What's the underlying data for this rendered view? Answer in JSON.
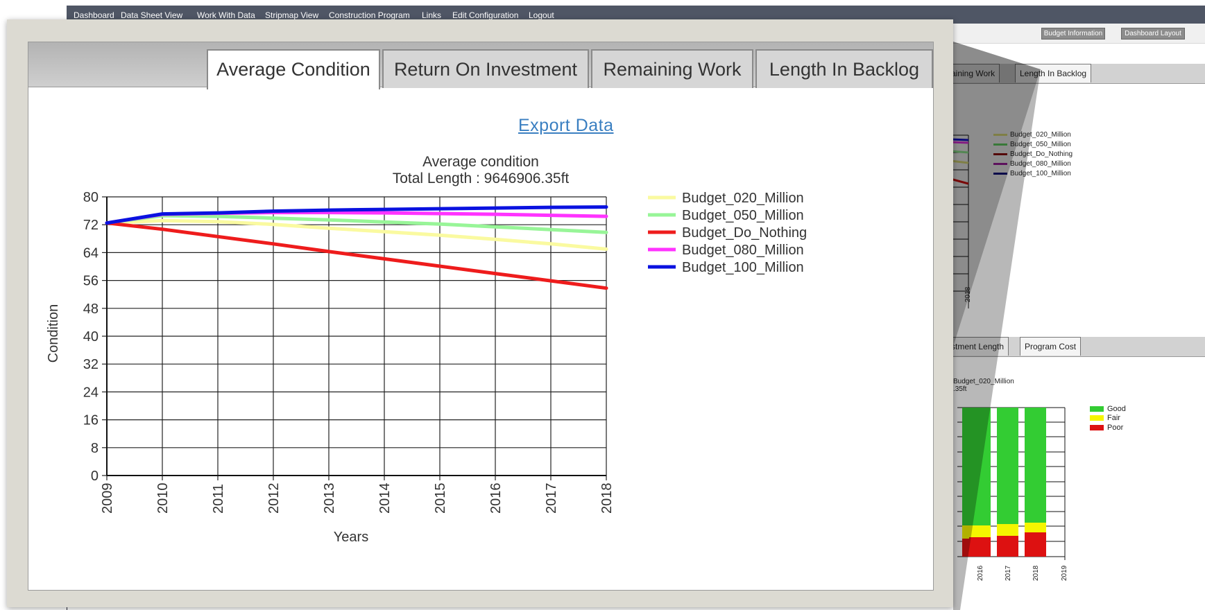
{
  "nav": {
    "items": [
      "Dashboard",
      "Data Sheet View",
      "Work With Data",
      "Stripmap View",
      "Construction Program",
      "Links",
      "Edit Configuration",
      "Logout"
    ]
  },
  "toolbar": {
    "budget_information": "Budget Information",
    "dashboard_layout": "Dashboard Layout"
  },
  "background": {
    "top_tabs": [
      "maining Work",
      "Length In Backlog"
    ],
    "legend": [
      "Budget_020_Million",
      "Budget_050_Million",
      "Budget_Do_Nothing",
      "Budget_080_Million",
      "Budget_100_Million"
    ],
    "axis_label_2018": "2018",
    "bottom_tabs": [
      "stment Length",
      "Program Cost"
    ],
    "bottom_caption_1": "Budget_020_Million",
    "bottom_caption_2": ".35ft",
    "bar_legend": [
      "Good",
      "Fair",
      "Poor"
    ],
    "bar_years": [
      "2016",
      "2017",
      "2018",
      "2019"
    ]
  },
  "popup": {
    "tabs": [
      "Average Condition",
      "Return On Investment",
      "Remaining Work",
      "Length In Backlog"
    ],
    "active_tab": "Average Condition",
    "export_label": "Export Data"
  },
  "colors": {
    "Budget_020_Million": "#fafaa0",
    "Budget_050_Million": "#98f598",
    "Budget_Do_Nothing": "#ee1c1c",
    "Budget_080_Million": "#ff33ff",
    "Budget_100_Million": "#0a12e0",
    "good": "#33cc33",
    "fair": "#f5f500",
    "poor": "#dd1111"
  },
  "chart_data": {
    "type": "line",
    "title": "Average condition",
    "subtitle": "Total Length : 9646906.35ft",
    "xlabel": "Years",
    "ylabel": "Condition",
    "x": [
      2009,
      2010,
      2011,
      2012,
      2013,
      2014,
      2015,
      2016,
      2017,
      2018
    ],
    "ylim": [
      0,
      80
    ],
    "yticks": [
      0,
      8,
      16,
      24,
      32,
      40,
      48,
      56,
      64,
      72,
      80
    ],
    "grid": true,
    "legend_position": "right",
    "series": [
      {
        "name": "Budget_020_Million",
        "values": [
          72.5,
          73.2,
          72.9,
          72.1,
          71.0,
          70.0,
          69.0,
          67.8,
          66.5,
          65.0
        ]
      },
      {
        "name": "Budget_050_Million",
        "values": [
          72.5,
          74.6,
          74.4,
          73.9,
          73.4,
          72.8,
          72.2,
          71.4,
          70.6,
          69.8
        ]
      },
      {
        "name": "Budget_Do_Nothing",
        "values": [
          72.5,
          70.7,
          68.6,
          66.5,
          64.3,
          62.2,
          60.1,
          58.0,
          55.9,
          53.8
        ]
      },
      {
        "name": "Budget_080_Million",
        "values": [
          72.5,
          75.0,
          75.3,
          75.5,
          75.5,
          75.4,
          75.2,
          75.0,
          74.7,
          74.4
        ]
      },
      {
        "name": "Budget_100_Million",
        "values": [
          72.5,
          75.1,
          75.4,
          75.9,
          76.2,
          76.4,
          76.6,
          76.8,
          77.0,
          77.1
        ]
      }
    ]
  }
}
